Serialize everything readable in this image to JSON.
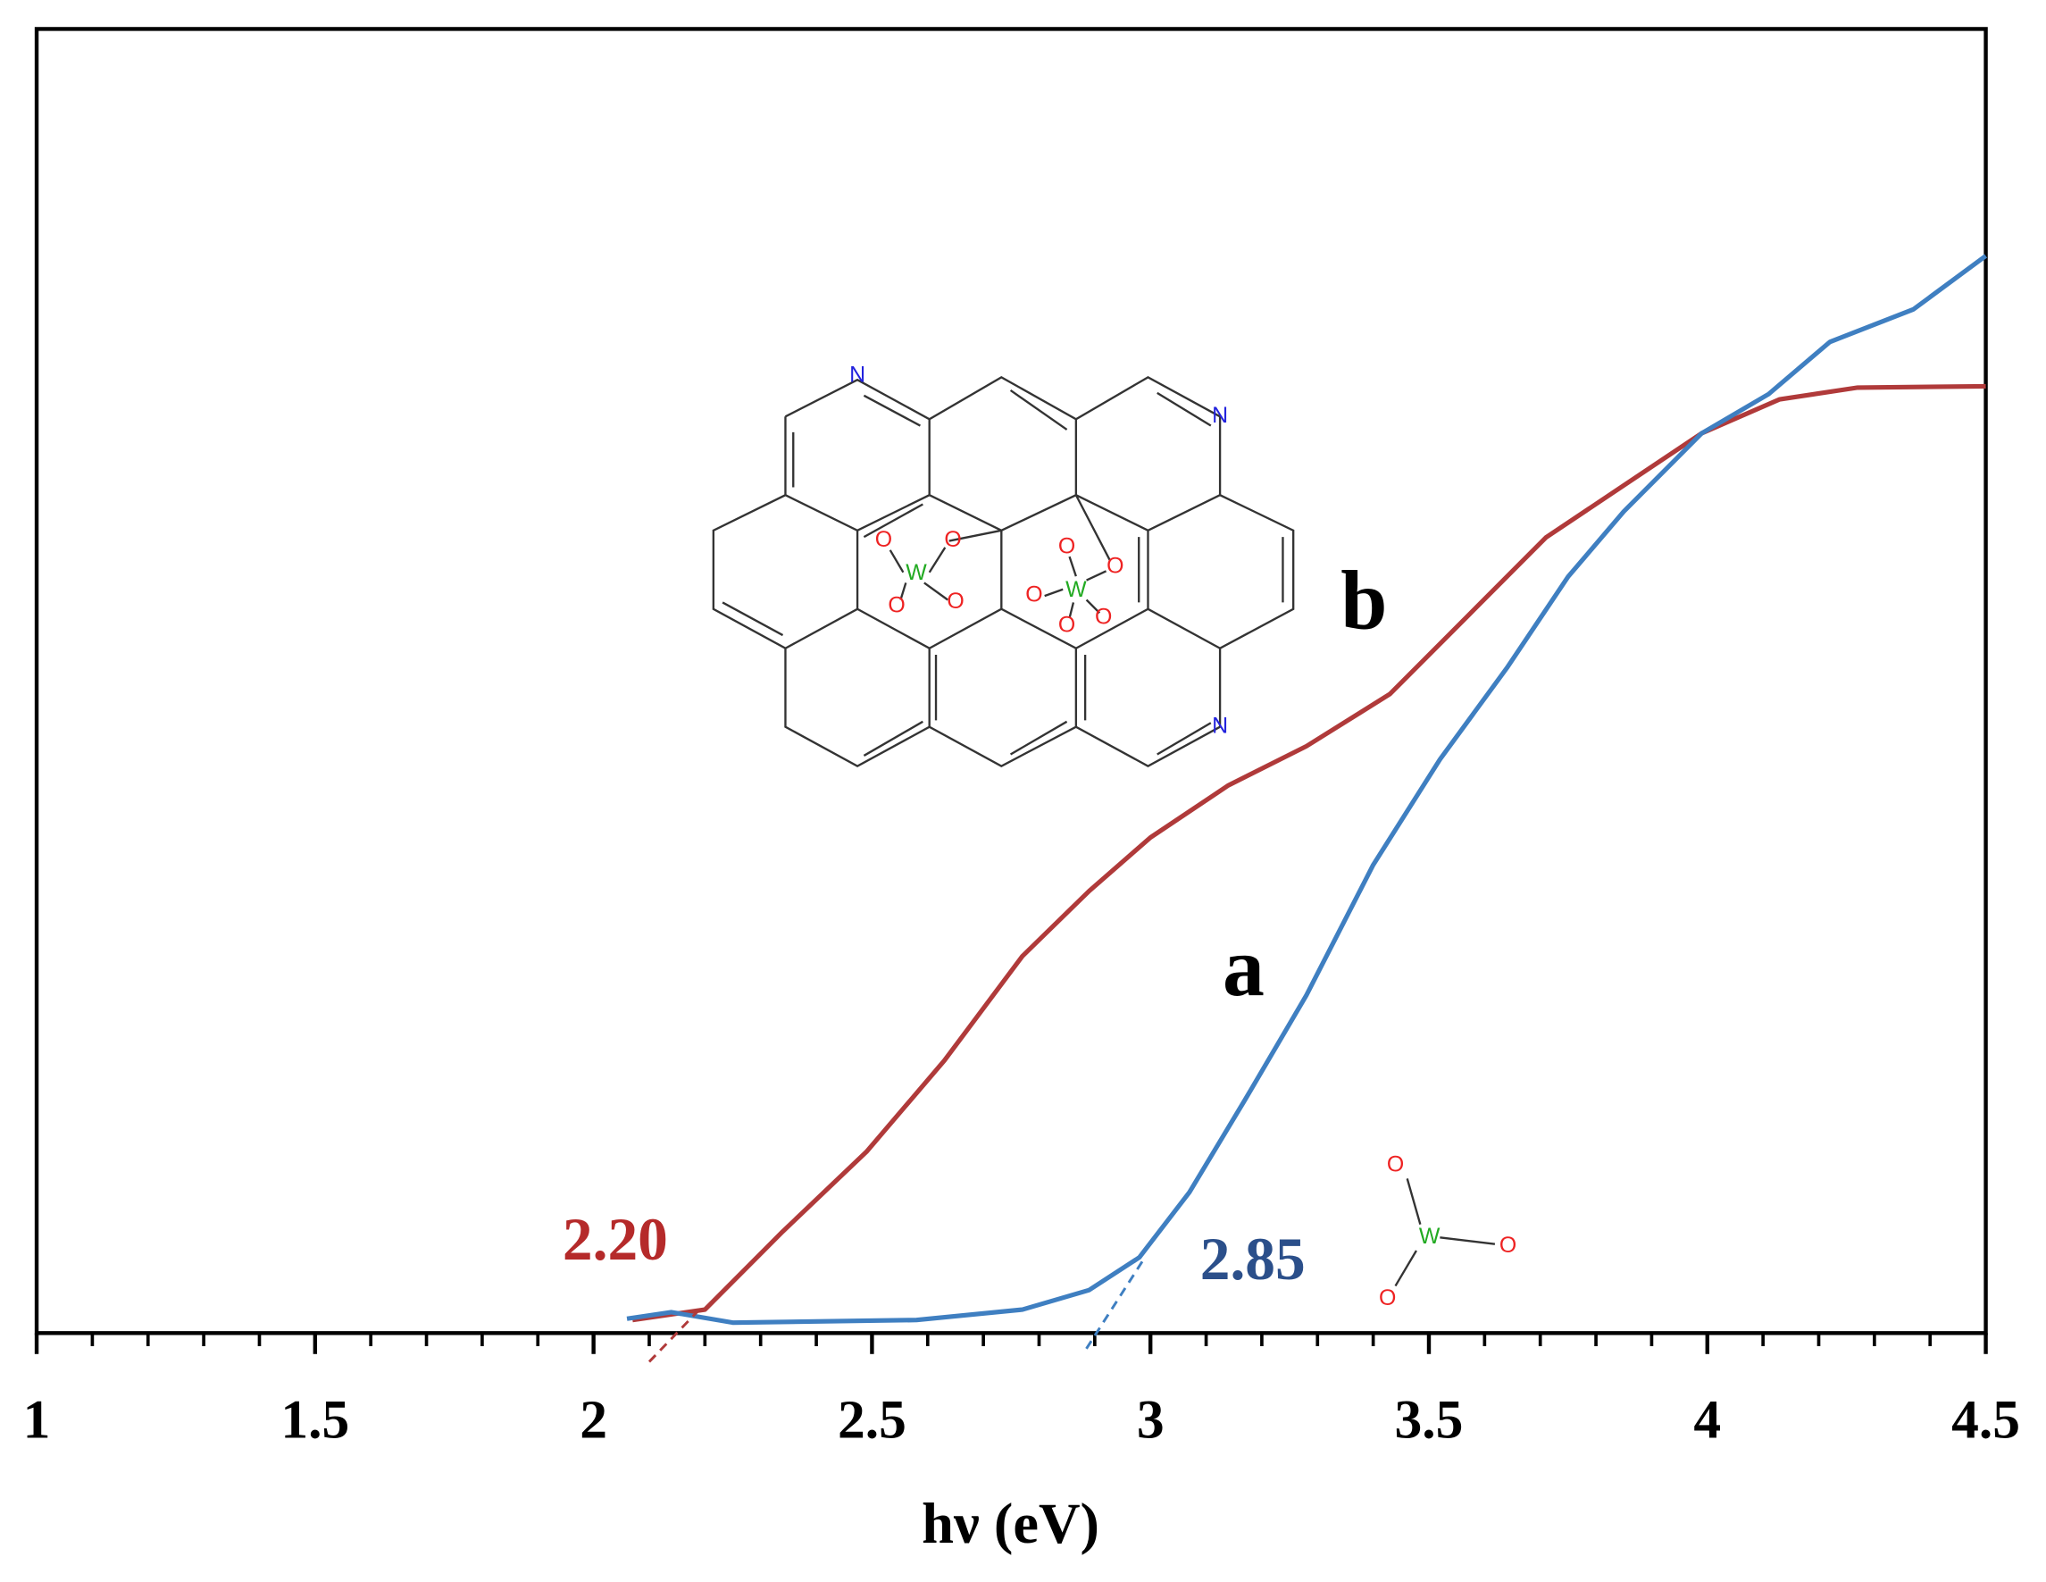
{
  "chart_data": {
    "type": "line",
    "xlabel": "hν (eV)",
    "xlim": [
      1,
      4.5
    ],
    "xticks": [
      1,
      1.5,
      2,
      2.5,
      3,
      3.5,
      4,
      4.5
    ],
    "xminor_ticks": [
      1.1,
      1.2,
      1.3,
      1.4,
      1.6,
      1.7,
      1.8,
      1.9,
      2.1,
      2.2,
      2.3,
      2.4,
      2.6,
      2.7,
      2.8,
      2.9,
      3.1,
      3.2,
      3.3,
      3.4,
      3.6,
      3.7,
      3.8,
      3.9,
      4.1,
      4.2,
      4.3,
      4.4
    ],
    "ylim": [
      0,
      100
    ],
    "series": [
      {
        "color": "#b03a3a",
        "x": [
          2.07,
          2.2,
          2.34,
          2.49,
          2.63,
          2.77,
          2.89,
          3.0,
          3.14,
          3.28,
          3.43,
          3.57,
          3.71,
          3.85,
          3.99,
          4.13,
          4.27,
          4.5
        ],
        "values": [
          1.0,
          1.8,
          7.8,
          13.9,
          20.9,
          28.9,
          33.9,
          38,
          42,
          45,
          49,
          55,
          61,
          65,
          69,
          71.6,
          72.5,
          72.6
        ]
      },
      {
        "color": "#3f7fc1",
        "x": [
          2.06,
          2.14,
          2.25,
          2.58,
          2.77,
          2.89,
          2.98,
          3.07,
          3.17,
          3.28,
          3.4,
          3.52,
          3.64,
          3.75,
          3.85,
          3.99,
          4.11,
          4.22,
          4.37,
          4.5
        ],
        "values": [
          1.1,
          1.6,
          0.8,
          1.0,
          1.8,
          3.3,
          5.8,
          10.8,
          17.9,
          25.9,
          35.9,
          44,
          51,
          58,
          63,
          69,
          72,
          76,
          78.5,
          82.6
        ]
      }
    ],
    "tangent_lines": [
      {
        "color": "#b03a3a",
        "x": [
          2.1,
          2.19
        ],
        "values": [
          -2.2,
          1.8
        ]
      },
      {
        "color": "#3f7fc1",
        "x": [
          2.885,
          2.99
        ],
        "values": [
          -1.2,
          5.8
        ]
      }
    ],
    "annotations": [
      {
        "text": "2.20",
        "color": "#b52a2a"
      },
      {
        "text": "2.85",
        "color": "#2b4f8a"
      },
      {
        "text": "a",
        "color": "#000000"
      },
      {
        "text": "b",
        "color": "#000000"
      }
    ],
    "inset_atoms": {
      "N": "N",
      "O": "O",
      "W": "W"
    }
  }
}
